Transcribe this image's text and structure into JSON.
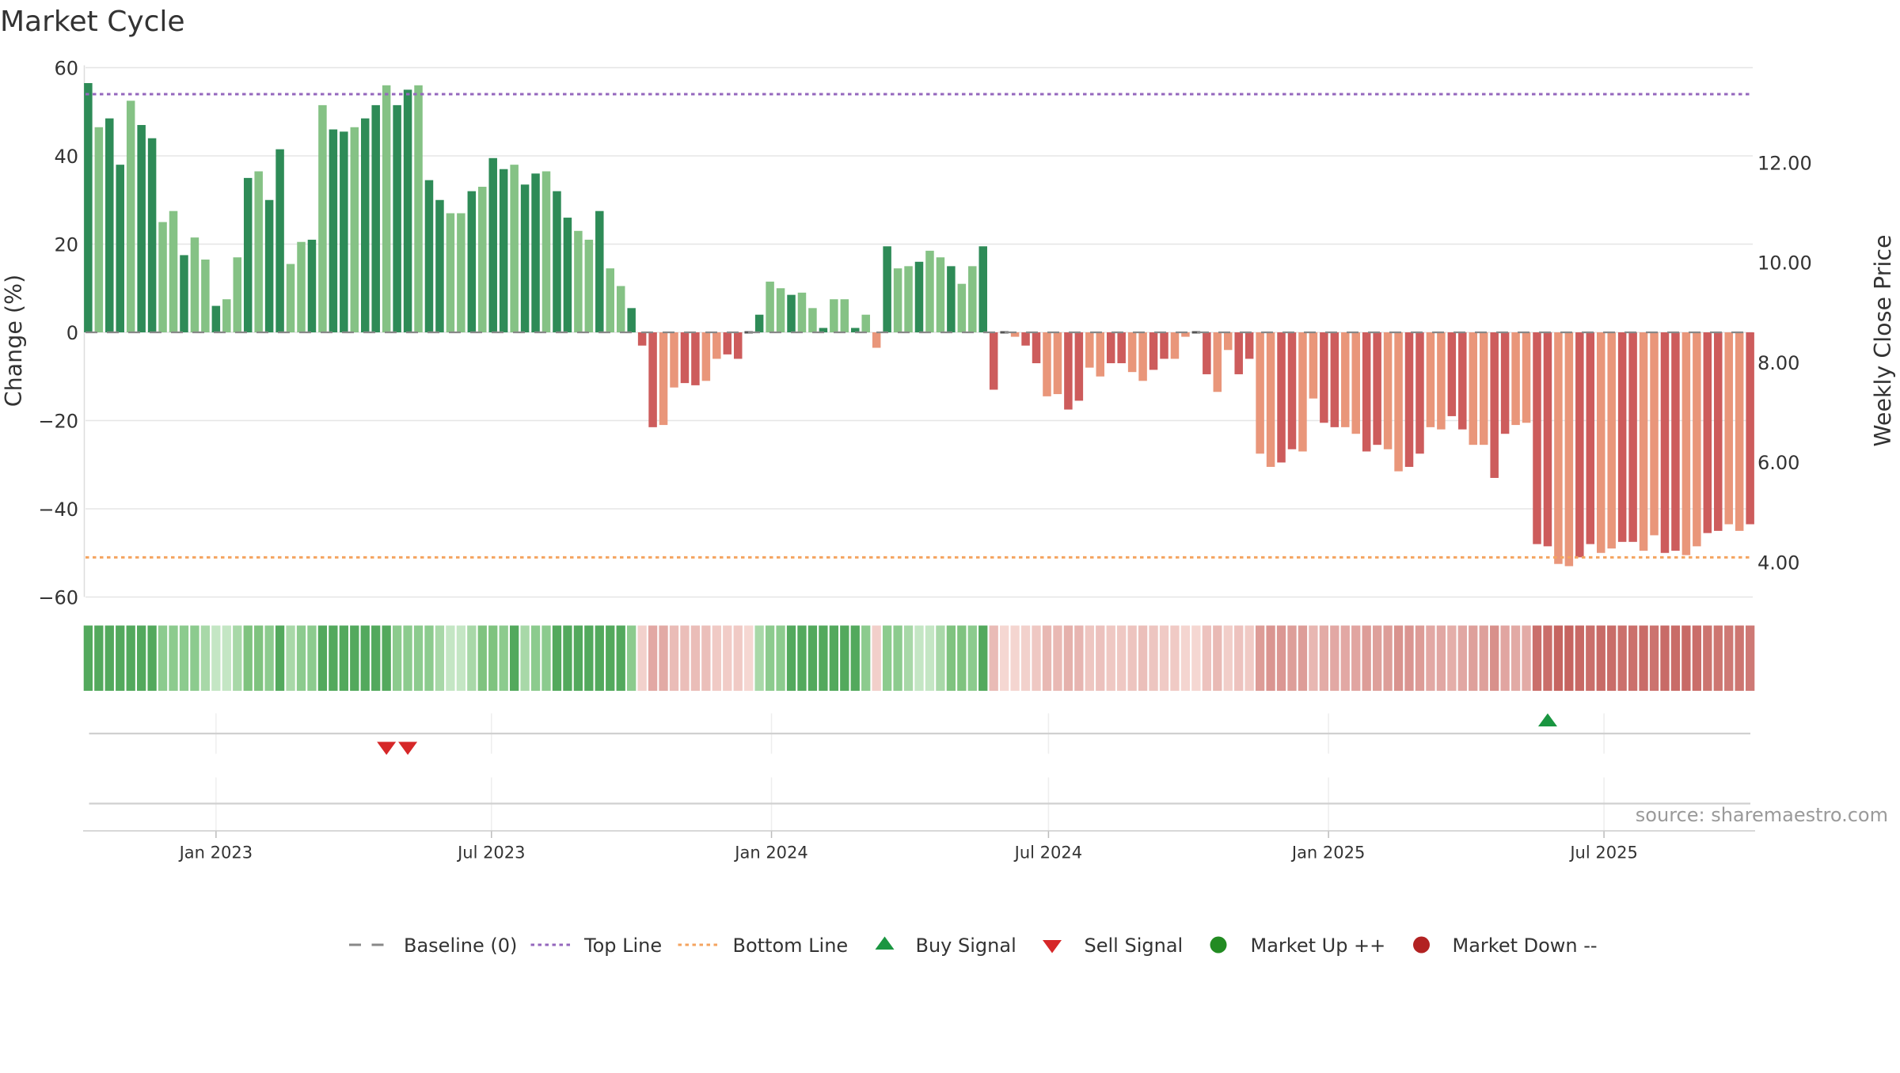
{
  "title": "Market Cycle",
  "source": "source: sharemaestro.com",
  "colors": {
    "up_dark": "#2e8b57",
    "up_light": "#85c285",
    "down_dark": "#cd5c5c",
    "down_light": "#e9967a",
    "top_line": "#9467bd",
    "bottom_line": "#f4a460",
    "baseline": "#888888",
    "buy": "#1a9641",
    "sell": "#d62728",
    "market_up": "#228b22",
    "market_down": "#b22222",
    "grid": "#e5e5e5"
  },
  "chart_data": {
    "type": "bar",
    "title": "Market Cycle",
    "xlabel": "",
    "ylabel": "Change (%)",
    "y2label": "Weekly Close Price",
    "ylim": [
      -60,
      60
    ],
    "y_ticks": [
      "60",
      "40",
      "20",
      "0",
      "−20",
      "−40",
      "−60"
    ],
    "y_tick_values": [
      60,
      40,
      20,
      0,
      -20,
      -40,
      -60
    ],
    "y2_ticks": [
      "12.00",
      "10.00",
      "8.00",
      "6.00",
      "4.00"
    ],
    "y2_tick_values": [
      12,
      10,
      8,
      6,
      4
    ],
    "y2lim": [
      3.3,
      13.9
    ],
    "x_ticks": [
      "Jan 2023",
      "Jul 2023",
      "Jan 2024",
      "Jul 2024",
      "Jan 2025",
      "Jul 2025"
    ],
    "x_tick_dates": [
      "2023-01-01",
      "2023-07-01",
      "2024-01-01",
      "2024-07-01",
      "2025-01-01",
      "2025-07-01"
    ],
    "start_date": "2022-10-09",
    "week_days": 7,
    "top_line": 54,
    "bottom_line": -51,
    "baseline": 0,
    "grid": true,
    "legend_position": "bottom",
    "values": [
      56.5,
      46.5,
      48.5,
      38,
      52.5,
      47,
      44,
      25,
      27.5,
      17.5,
      21.5,
      16.5,
      6,
      7.5,
      17,
      35,
      36.5,
      30,
      41.5,
      15.5,
      20.5,
      21,
      51.5,
      46,
      45.5,
      46.5,
      48.5,
      51.5,
      56,
      51.5,
      55,
      56,
      34.5,
      30,
      27,
      27,
      32,
      33,
      39.5,
      37,
      38,
      33.5,
      36,
      36.5,
      32,
      26,
      23,
      21,
      27.5,
      14.5,
      10.5,
      5.5,
      -3,
      -21.5,
      -21,
      -12.5,
      -11.5,
      -12,
      -11,
      -6,
      -5,
      -6,
      0,
      4,
      11.5,
      10,
      8.5,
      9,
      5.5,
      1,
      7.5,
      7.5,
      1,
      4,
      -3.5,
      19.5,
      14.5,
      15,
      16,
      18.5,
      17,
      15,
      11,
      15,
      19.5,
      -13,
      0,
      -1,
      -3,
      -7,
      -14.5,
      -14,
      -17.5,
      -15.5,
      -8,
      -10,
      -7,
      -7,
      -9,
      -11,
      -8.5,
      -6,
      -6,
      -1,
      0,
      -9.5,
      -13.5,
      -4,
      -9.5,
      -6,
      -27.5,
      -30.5,
      -29.5,
      -26.5,
      -27,
      -15,
      -20.5,
      -21.5,
      -21.5,
      -23,
      -27,
      -25.5,
      -26.5,
      -31.5,
      -30.5,
      -27.5,
      -21.5,
      -22,
      -19,
      -22,
      -25.5,
      -25.5,
      -33,
      -23,
      -21,
      -20.5,
      -48,
      -48.5,
      -52.5,
      -53,
      -51,
      -48,
      -50,
      -49,
      -47.5,
      -47.5,
      -49.5,
      -46,
      -50,
      -49.5,
      -50.5,
      -48.5,
      -45.5,
      -45,
      -43.5,
      -45,
      -43.5
    ],
    "buy_signals": [
      "2025-05-25"
    ],
    "sell_signals": [
      "2023-04-23",
      "2023-05-07"
    ],
    "strip_up_shades": [
      "#53a95d",
      "#53a95d",
      "#53a95d",
      "#53a95d",
      "#53a95d",
      "#53a95d",
      "#53a95d",
      "#8ccb8e",
      "#8ccb8e",
      "#8ccb8e",
      "#8ccb8e",
      "#a8d8a8",
      "#c4e6c4",
      "#c4e6c4",
      "#a8d8a8",
      "#7fc37f",
      "#7fc37f",
      "#8ccb8e",
      "#53a95d",
      "#a8d8a8",
      "#8ccb8e",
      "#8ccb8e"
    ],
    "series": [
      {
        "name": "Baseline (0)",
        "kind": "dash-line"
      },
      {
        "name": "Top Line",
        "kind": "dotted-line"
      },
      {
        "name": "Bottom Line",
        "kind": "dotted-line"
      },
      {
        "name": "Buy Signal",
        "kind": "marker-up"
      },
      {
        "name": "Sell Signal",
        "kind": "marker-down"
      },
      {
        "name": "Market Up ++",
        "kind": "dot"
      },
      {
        "name": "Market Down --",
        "kind": "dot"
      }
    ]
  }
}
